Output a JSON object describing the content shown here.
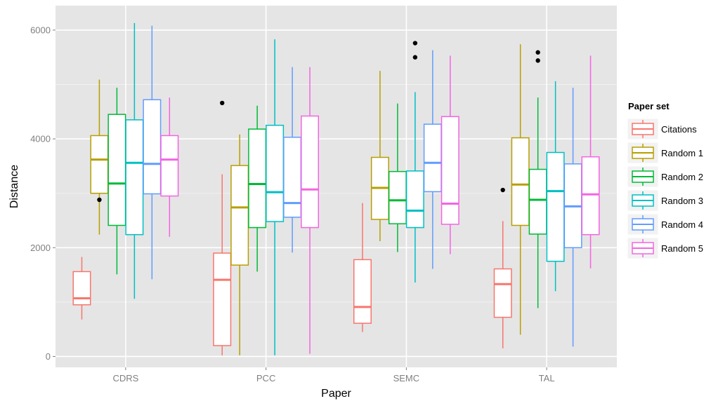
{
  "chart_data": {
    "type": "boxplot",
    "title": "",
    "xlabel": "Paper",
    "ylabel": "Distance",
    "ylim": [
      -200,
      6450
    ],
    "yticks": [
      0,
      2000,
      4000,
      6000
    ],
    "grid": true,
    "background": "#e5e5e5",
    "legend": {
      "title": "Paper set",
      "position": "right"
    },
    "categories": [
      "CDRS",
      "PCC",
      "SEMC",
      "TAL"
    ],
    "series": [
      {
        "name": "Citations",
        "color": "#f8766d",
        "boxes": [
          {
            "whisker_low": 680,
            "q1": 950,
            "median": 1070,
            "q3": 1560,
            "whisker_high": 1830,
            "outliers": []
          },
          {
            "whisker_low": 20,
            "q1": 200,
            "median": 1410,
            "q3": 1900,
            "whisker_high": 3350,
            "outliers": [
              4660
            ]
          },
          {
            "whisker_low": 450,
            "q1": 610,
            "median": 910,
            "q3": 1780,
            "whisker_high": 2820,
            "outliers": []
          },
          {
            "whisker_low": 150,
            "q1": 720,
            "median": 1330,
            "q3": 1610,
            "whisker_high": 2490,
            "outliers": [
              3060
            ]
          }
        ]
      },
      {
        "name": "Random 1",
        "color": "#b79f00",
        "boxes": [
          {
            "whisker_low": 2240,
            "q1": 3000,
            "median": 3620,
            "q3": 4060,
            "whisker_high": 5090,
            "outliers": [
              2880
            ]
          },
          {
            "whisker_low": 20,
            "q1": 1680,
            "median": 2740,
            "q3": 3510,
            "whisker_high": 4080,
            "outliers": []
          },
          {
            "whisker_low": 2120,
            "q1": 2520,
            "median": 3100,
            "q3": 3660,
            "whisker_high": 5250,
            "outliers": []
          },
          {
            "whisker_low": 400,
            "q1": 2410,
            "median": 3160,
            "q3": 4020,
            "whisker_high": 5740,
            "outliers": []
          }
        ]
      },
      {
        "name": "Random 2",
        "color": "#00ba38",
        "boxes": [
          {
            "whisker_low": 1510,
            "q1": 2410,
            "median": 3180,
            "q3": 4450,
            "whisker_high": 4940,
            "outliers": []
          },
          {
            "whisker_low": 1560,
            "q1": 2370,
            "median": 3170,
            "q3": 4180,
            "whisker_high": 4610,
            "outliers": []
          },
          {
            "whisker_low": 1920,
            "q1": 2440,
            "median": 2870,
            "q3": 3400,
            "whisker_high": 4650,
            "outliers": []
          },
          {
            "whisker_low": 890,
            "q1": 2250,
            "median": 2880,
            "q3": 3440,
            "whisker_high": 4760,
            "outliers": [
              5440,
              5590
            ]
          }
        ]
      },
      {
        "name": "Random 3",
        "color": "#00bfc4",
        "boxes": [
          {
            "whisker_low": 1060,
            "q1": 2240,
            "median": 3560,
            "q3": 4350,
            "whisker_high": 6130,
            "outliers": []
          },
          {
            "whisker_low": 20,
            "q1": 2480,
            "median": 3020,
            "q3": 4250,
            "whisker_high": 5830,
            "outliers": []
          },
          {
            "whisker_low": 1360,
            "q1": 2370,
            "median": 2680,
            "q3": 3410,
            "whisker_high": 4860,
            "outliers": [
              5500,
              5760
            ]
          },
          {
            "whisker_low": 1200,
            "q1": 1750,
            "median": 3040,
            "q3": 3750,
            "whisker_high": 5060,
            "outliers": []
          }
        ]
      },
      {
        "name": "Random 4",
        "color": "#619cff",
        "boxes": [
          {
            "whisker_low": 1420,
            "q1": 2990,
            "median": 3540,
            "q3": 4720,
            "whisker_high": 6080,
            "outliers": []
          },
          {
            "whisker_low": 1910,
            "q1": 2560,
            "median": 2820,
            "q3": 4030,
            "whisker_high": 5320,
            "outliers": []
          },
          {
            "whisker_low": 1610,
            "q1": 3030,
            "median": 3560,
            "q3": 4270,
            "whisker_high": 5630,
            "outliers": []
          },
          {
            "whisker_low": 180,
            "q1": 2000,
            "median": 2760,
            "q3": 3540,
            "whisker_high": 4940,
            "outliers": []
          }
        ]
      },
      {
        "name": "Random 5",
        "color": "#f564e3",
        "boxes": [
          {
            "whisker_low": 2200,
            "q1": 2950,
            "median": 3620,
            "q3": 4060,
            "whisker_high": 4760,
            "outliers": []
          },
          {
            "whisker_low": 50,
            "q1": 2370,
            "median": 3070,
            "q3": 4420,
            "whisker_high": 5320,
            "outliers": []
          },
          {
            "whisker_low": 1880,
            "q1": 2430,
            "median": 2810,
            "q3": 4410,
            "whisker_high": 5530,
            "outliers": []
          },
          {
            "whisker_low": 1620,
            "q1": 2240,
            "median": 2980,
            "q3": 3670,
            "whisker_high": 5530,
            "outliers": []
          }
        ]
      }
    ]
  }
}
